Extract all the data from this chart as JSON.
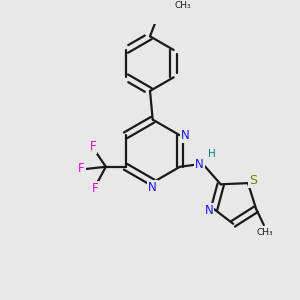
{
  "background_color": "#e8e8e8",
  "bond_color": "#1a1a1a",
  "N_color": "#1414ff",
  "S_color": "#7a7a00",
  "F_color": "#e600e6",
  "H_color": "#008080",
  "figsize": [
    3.0,
    3.0
  ],
  "dpi": 100,
  "xlim": [
    0,
    10
  ],
  "ylim": [
    0,
    10
  ]
}
